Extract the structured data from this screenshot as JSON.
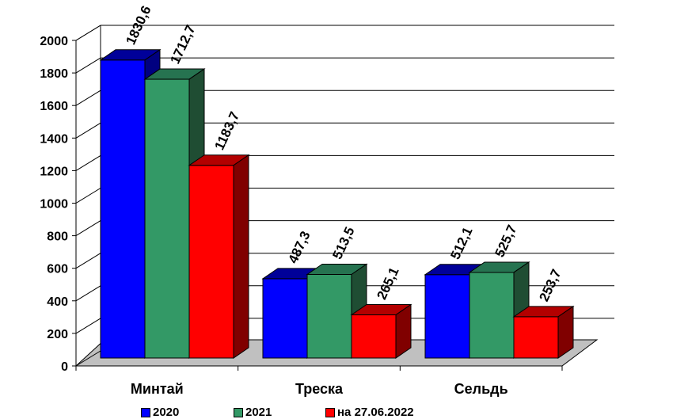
{
  "chart_data": {
    "type": "bar",
    "categories": [
      "Минтай",
      "Треска",
      "Сельдь"
    ],
    "series": [
      {
        "name": "2020",
        "values": [
          1830.6,
          487.3,
          512.1
        ],
        "labels": [
          "1830,6",
          "487,3",
          "512,1"
        ],
        "color": "#0000FF",
        "top_color": "#000099",
        "side_color": "#000080"
      },
      {
        "name": "2021",
        "values": [
          1712.7,
          513.5,
          525.7
        ],
        "labels": [
          "1712,7",
          "513,5",
          "525,7"
        ],
        "color": "#339966",
        "top_color": "#267350",
        "side_color": "#1F4D33"
      },
      {
        "name": "на 27.06.2022",
        "values": [
          1183.7,
          265.1,
          253.7
        ],
        "labels": [
          "1183,7",
          "265,1",
          "253,7"
        ],
        "color": "#FF0000",
        "top_color": "#B30000",
        "side_color": "#800000"
      }
    ],
    "y_ticks": [
      "0",
      "200",
      "400",
      "600",
      "800",
      "1000",
      "1200",
      "1400",
      "1600",
      "1800",
      "2000"
    ],
    "ylim": [
      0,
      2000
    ],
    "grid": true,
    "legend_position": "bottom",
    "floor_color": "#C0C0C0"
  }
}
